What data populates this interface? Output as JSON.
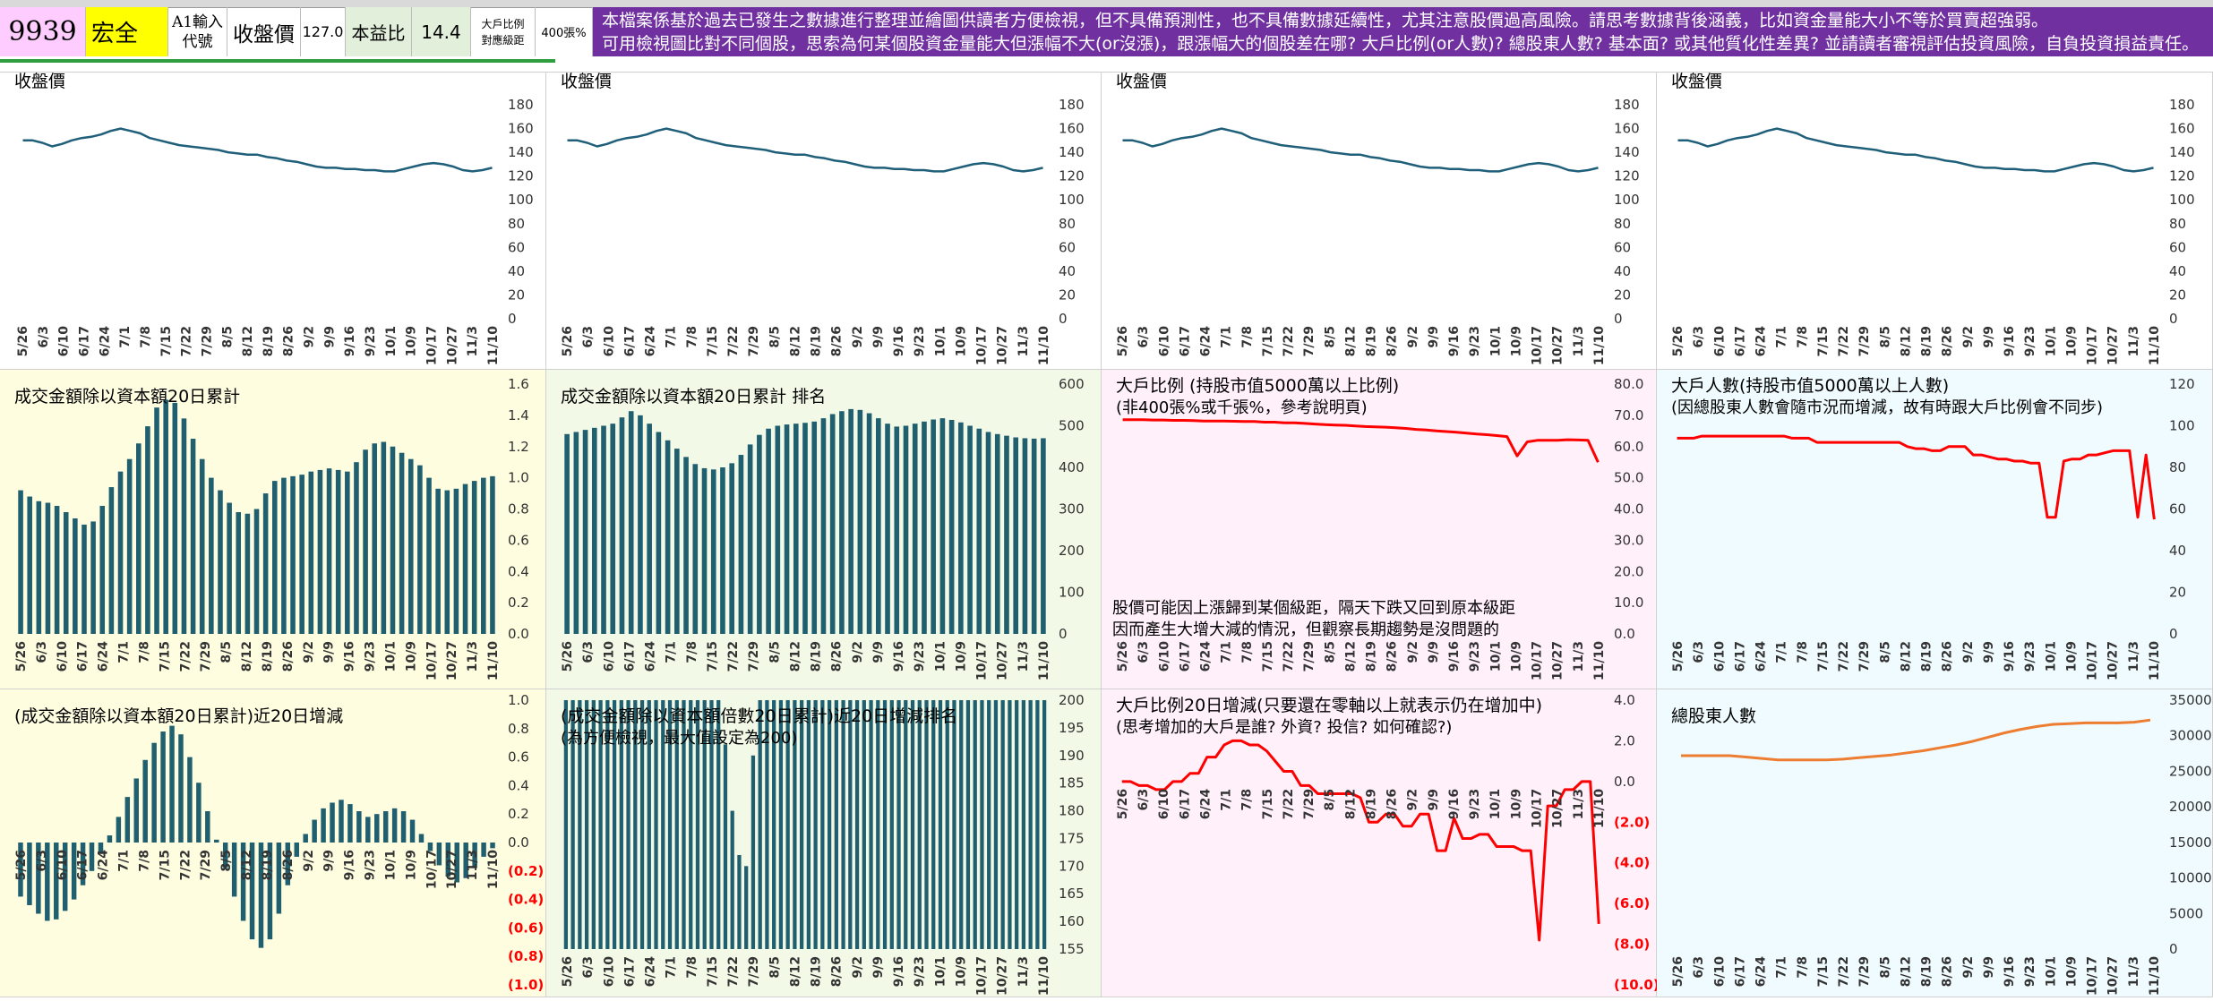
{
  "header": {
    "code": "9939",
    "name": "宏全",
    "input_label_1": "A1輸入",
    "input_label_2": "代號",
    "close_label": "收盤價",
    "close_value": "127.0",
    "pe_label": "本益比",
    "pe_value": "14.4",
    "ratio_label_1": "大戶比例",
    "ratio_label_2": "對應級距",
    "ratio_value": "400張%",
    "notice_line1": "本檔案係基於過去已發生之數據進行整理並繪圖供讀者方便檢視，但不具備預測性，也不具備數據延續性，尤其注意股價過高風險。請思考數據背後涵義，比如資金量能大小不等於買賣超強弱。",
    "notice_line2": "可用檢視圖比對不同個股，思索為何某個股資金量能大但漲幅不大(or沒漲)，跟漲幅大的個股差在哪? 大戶比例(or人數)? 總股東人數? 基本面? 或其他質化性差異? 並請讀者審視評估投資風險，自負投資損益責任。"
  },
  "colors": {
    "code_bg": "#ffccff",
    "name_bg": "#ffff00",
    "pe_bg": "#e2efda",
    "notice_bg": "#7030a0",
    "bar": "#1f5f6f",
    "price_line": "#1f5f7a",
    "red_line": "#ff0000",
    "orange_line": "#ed7d31",
    "yellow_bg": "#fffde0",
    "green_bg": "#f2f9e6",
    "pink_bg": "#fff0fa",
    "cyan_bg": "#f0fbff"
  },
  "x_labels": [
    "5/26",
    "6/3",
    "6/10",
    "6/17",
    "6/24",
    "7/1",
    "7/8",
    "7/15",
    "7/22",
    "7/29",
    "8/5",
    "8/12",
    "8/19",
    "8/26",
    "9/2",
    "9/9",
    "9/16",
    "9/23",
    "10/1",
    "10/9",
    "10/17",
    "10/27",
    "11/3",
    "11/10"
  ],
  "chart_data": [
    {
      "id": "price1",
      "type": "line",
      "title": "收盤價",
      "ylim": [
        0,
        180
      ],
      "yticks": [
        0,
        20,
        40,
        60,
        80,
        100,
        120,
        140,
        160,
        180
      ],
      "series": [
        {
          "values": [
            150,
            150,
            148,
            145,
            147,
            150,
            152,
            153,
            155,
            158,
            160,
            158,
            156,
            152,
            150,
            148,
            146,
            145,
            144,
            143,
            142,
            140,
            139,
            138,
            138,
            136,
            135,
            133,
            132,
            130,
            128,
            127,
            127,
            126,
            126,
            125,
            125,
            124,
            124,
            126,
            128,
            130,
            131,
            130,
            128,
            125,
            124,
            125,
            127
          ]
        }
      ]
    },
    {
      "id": "price2",
      "type": "line",
      "title": "收盤價",
      "ylim": [
        0,
        180
      ],
      "yticks": [
        0,
        20,
        40,
        60,
        80,
        100,
        120,
        140,
        160,
        180
      ],
      "series": [
        {
          "values": [
            150,
            150,
            148,
            145,
            147,
            150,
            152,
            153,
            155,
            158,
            160,
            158,
            156,
            152,
            150,
            148,
            146,
            145,
            144,
            143,
            142,
            140,
            139,
            138,
            138,
            136,
            135,
            133,
            132,
            130,
            128,
            127,
            127,
            126,
            126,
            125,
            125,
            124,
            124,
            126,
            128,
            130,
            131,
            130,
            128,
            125,
            124,
            125,
            127
          ]
        }
      ]
    },
    {
      "id": "price3",
      "type": "line",
      "title": "收盤價",
      "ylim": [
        0,
        180
      ],
      "yticks": [
        0,
        20,
        40,
        60,
        80,
        100,
        120,
        140,
        160,
        180
      ],
      "series": [
        {
          "values": [
            150,
            150,
            148,
            145,
            147,
            150,
            152,
            153,
            155,
            158,
            160,
            158,
            156,
            152,
            150,
            148,
            146,
            145,
            144,
            143,
            142,
            140,
            139,
            138,
            138,
            136,
            135,
            133,
            132,
            130,
            128,
            127,
            127,
            126,
            126,
            125,
            125,
            124,
            124,
            126,
            128,
            130,
            131,
            130,
            128,
            125,
            124,
            125,
            127
          ]
        }
      ]
    },
    {
      "id": "price4",
      "type": "line",
      "title": "收盤價",
      "ylim": [
        0,
        180
      ],
      "yticks": [
        0,
        20,
        40,
        60,
        80,
        100,
        120,
        140,
        160,
        180
      ],
      "series": [
        {
          "values": [
            150,
            150,
            148,
            145,
            147,
            150,
            152,
            153,
            155,
            158,
            160,
            158,
            156,
            152,
            150,
            148,
            146,
            145,
            144,
            143,
            142,
            140,
            139,
            138,
            138,
            136,
            135,
            133,
            132,
            130,
            128,
            127,
            127,
            126,
            126,
            125,
            125,
            124,
            124,
            126,
            128,
            130,
            131,
            130,
            128,
            125,
            124,
            125,
            127
          ]
        }
      ]
    },
    {
      "id": "turnover20",
      "type": "bar",
      "title": "成交金額除以資本額20日累計",
      "ylim": [
        0,
        1.6
      ],
      "yticks": [
        0,
        0.2,
        0.4,
        0.6,
        0.8,
        1.0,
        1.2,
        1.4,
        1.6
      ],
      "ytick_labels": [
        "0.0",
        "0.2",
        "0.4",
        "0.6",
        "0.8",
        "1.0",
        "1.2",
        "1.4",
        "1.6"
      ],
      "series": [
        {
          "values": [
            0.92,
            0.88,
            0.85,
            0.84,
            0.82,
            0.78,
            0.74,
            0.7,
            0.72,
            0.82,
            0.94,
            1.04,
            1.12,
            1.22,
            1.33,
            1.45,
            1.5,
            1.48,
            1.38,
            1.25,
            1.12,
            1.0,
            0.92,
            0.84,
            0.78,
            0.77,
            0.8,
            0.9,
            0.98,
            1.0,
            1.01,
            1.02,
            1.04,
            1.05,
            1.06,
            1.05,
            1.04,
            1.1,
            1.18,
            1.22,
            1.23,
            1.2,
            1.16,
            1.12,
            1.08,
            1.0,
            0.93,
            0.92,
            0.93,
            0.96,
            0.98,
            1.0,
            1.01
          ]
        }
      ]
    },
    {
      "id": "turnover20_rank",
      "type": "bar",
      "title": "成交金額除以資本額20日累計 排名",
      "ylim": [
        0,
        600
      ],
      "yticks": [
        0,
        100,
        200,
        300,
        400,
        500,
        600
      ],
      "series": [
        {
          "values": [
            480,
            485,
            490,
            495,
            500,
            505,
            520,
            535,
            525,
            505,
            485,
            465,
            445,
            425,
            408,
            398,
            395,
            400,
            410,
            430,
            455,
            478,
            493,
            500,
            503,
            505,
            507,
            510,
            518,
            528,
            535,
            540,
            538,
            530,
            518,
            505,
            498,
            500,
            505,
            510,
            515,
            518,
            514,
            508,
            500,
            493,
            485,
            480,
            476,
            472,
            470,
            469,
            470
          ]
        }
      ]
    },
    {
      "id": "holder_ratio",
      "type": "line",
      "title": "大戶比例 (持股市值5000萬以上比例)",
      "subtitle": "(非400張%或千張%，參考說明頁)",
      "annotation_1": "股價可能因上漲歸到某個級距，隔天下跌又回到原本級距",
      "annotation_2": "因而產生大增大減的情況，但觀察長期趨勢是沒問題的",
      "ylim": [
        0,
        80
      ],
      "yticks": [
        0,
        10,
        20,
        30,
        40,
        50,
        60,
        70,
        80
      ],
      "ytick_labels": [
        "0.0",
        "10.0",
        "20.0",
        "30.0",
        "40.0",
        "50.0",
        "60.0",
        "70.0",
        "80.0"
      ],
      "series": [
        {
          "values": [
            68.6,
            68.6,
            68.6,
            68.5,
            68.5,
            68.4,
            68.4,
            68.3,
            68.2,
            68.2,
            68.2,
            68.1,
            68.0,
            68.0,
            67.8,
            67.8,
            67.6,
            67.6,
            67.4,
            67.2,
            67.0,
            66.9,
            66.8,
            66.6,
            66.4,
            66.3,
            66.2,
            66.0,
            65.8,
            65.5,
            65.3,
            65.0,
            64.8,
            64.6,
            64.3,
            64.0,
            63.8,
            63.5,
            63.2,
            57.0,
            61.5,
            62.0,
            62.0,
            62.0,
            62.2,
            62.1,
            62.0,
            55.0
          ]
        }
      ]
    },
    {
      "id": "holder_count",
      "type": "line",
      "title": "大戶人數(持股市值5000萬以上人數)",
      "subtitle": "(因總股東人數會隨市況而增減，故有時跟大戶比例會不同步)",
      "ylim": [
        0,
        120
      ],
      "yticks": [
        0,
        20,
        40,
        60,
        80,
        100,
        120
      ],
      "series": [
        {
          "values": [
            94,
            94,
            94,
            95,
            95,
            95,
            95,
            95,
            95,
            95,
            95,
            95,
            95,
            95,
            94,
            94,
            94,
            92,
            92,
            92,
            92,
            92,
            92,
            92,
            92,
            92,
            92,
            92,
            90,
            89,
            89,
            88,
            88,
            90,
            90,
            90,
            86,
            86,
            85,
            84,
            84,
            83,
            83,
            82,
            82,
            56,
            56,
            83,
            84,
            84,
            86,
            86,
            87,
            88,
            88,
            88,
            56,
            86,
            55
          ]
        }
      ]
    },
    {
      "id": "turnover20_delta",
      "type": "bar",
      "title": "(成交金額除以資本額20日累計)近20日增減",
      "ylim": [
        -1.0,
        1.0
      ],
      "yticks": [
        -1.0,
        -0.8,
        -0.6,
        -0.4,
        -0.2,
        0,
        0.2,
        0.4,
        0.6,
        0.8,
        1.0
      ],
      "ytick_labels": [
        "(1.0)",
        "(0.8)",
        "(0.6)",
        "(0.4)",
        "(0.2)",
        "0.0",
        "0.2",
        "0.4",
        "0.6",
        "0.8",
        "1.0"
      ],
      "series": [
        {
          "values": [
            -0.38,
            -0.44,
            -0.5,
            -0.55,
            -0.54,
            -0.48,
            -0.4,
            -0.3,
            -0.2,
            -0.08,
            0.05,
            0.18,
            0.32,
            0.45,
            0.58,
            0.7,
            0.78,
            0.82,
            0.76,
            0.6,
            0.42,
            0.22,
            0.02,
            -0.18,
            -0.38,
            -0.55,
            -0.68,
            -0.74,
            -0.68,
            -0.5,
            -0.3,
            -0.1,
            0.06,
            0.16,
            0.24,
            0.28,
            0.3,
            0.27,
            0.22,
            0.18,
            0.2,
            0.22,
            0.24,
            0.22,
            0.16,
            0.06,
            -0.06,
            -0.16,
            -0.24,
            -0.28,
            -0.25,
            -0.18,
            -0.1,
            -0.04
          ]
        }
      ]
    },
    {
      "id": "turnover20_delta_rank",
      "type": "bar",
      "title": "(成交金額除以資本額倍數20日累計)近20日增減排名",
      "subtitle": "(為方便檢視，最大值設定為200)",
      "ylim": [
        155,
        200
      ],
      "yticks": [
        155,
        160,
        165,
        170,
        175,
        180,
        185,
        190,
        195,
        200
      ],
      "series": [
        {
          "values": [
            200,
            200,
            200,
            200,
            200,
            200,
            200,
            200,
            200,
            200,
            200,
            200,
            200,
            200,
            200,
            200,
            200,
            200,
            200,
            200,
            200,
            200,
            200,
            192,
            180,
            172,
            170,
            190,
            200,
            200,
            200,
            200,
            200,
            200,
            200,
            200,
            200,
            200,
            200,
            200,
            200,
            200,
            200,
            200,
            200,
            200,
            200,
            200,
            200,
            200,
            200,
            200,
            200,
            200,
            200,
            200,
            200,
            200,
            200,
            200,
            200,
            200,
            200,
            200,
            200,
            200,
            200,
            200,
            200,
            200
          ]
        }
      ]
    },
    {
      "id": "holder_ratio_delta",
      "type": "line",
      "title": "大戶比例20日增減(只要還在零軸以上就表示仍在增加中)",
      "subtitle": "(思考增加的大戶是誰? 外資? 投信? 如何確認?)",
      "ylim": [
        -10,
        4
      ],
      "yticks": [
        -10,
        -8,
        -6,
        -4,
        -2,
        0,
        2,
        4
      ],
      "ytick_labels": [
        "(10.0)",
        "(8.0)",
        "(6.0)",
        "(4.0)",
        "(2.0)",
        "0.0",
        "2.0",
        "4.0"
      ],
      "series": [
        {
          "values": [
            0,
            0,
            -0.2,
            -0.2,
            -0.4,
            -0.4,
            0,
            0,
            0.4,
            0.4,
            1.2,
            1.2,
            1.8,
            2.0,
            2.0,
            1.8,
            1.8,
            1.5,
            1.0,
            0.5,
            0.5,
            -0.2,
            -0.2,
            -0.6,
            -0.6,
            -0.6,
            -0.6,
            -0.6,
            -0.8,
            -2.0,
            -2.0,
            -1.6,
            -1.6,
            -2.2,
            -2.2,
            -1.6,
            -1.6,
            -3.4,
            -3.4,
            -1.8,
            -2.8,
            -2.8,
            -2.6,
            -2.6,
            -3.2,
            -3.2,
            -3.2,
            -3.4,
            -3.4,
            -7.8,
            -1.2,
            -1.2,
            -0.4,
            -0.4,
            0,
            0,
            -7.0
          ]
        }
      ]
    },
    {
      "id": "total_holders",
      "type": "line",
      "title": "總股東人數",
      "ylim": [
        0,
        35000
      ],
      "yticks": [
        0,
        5000,
        10000,
        15000,
        20000,
        25000,
        30000,
        35000
      ],
      "series": [
        {
          "values": [
            27200,
            27200,
            27200,
            27200,
            27000,
            26800,
            26600,
            26600,
            26600,
            26600,
            26700,
            26900,
            27100,
            27300,
            27600,
            27900,
            28300,
            28700,
            29200,
            29800,
            30400,
            30900,
            31300,
            31600,
            31700,
            31800,
            31800,
            31800,
            31900,
            32200
          ]
        }
      ]
    }
  ]
}
